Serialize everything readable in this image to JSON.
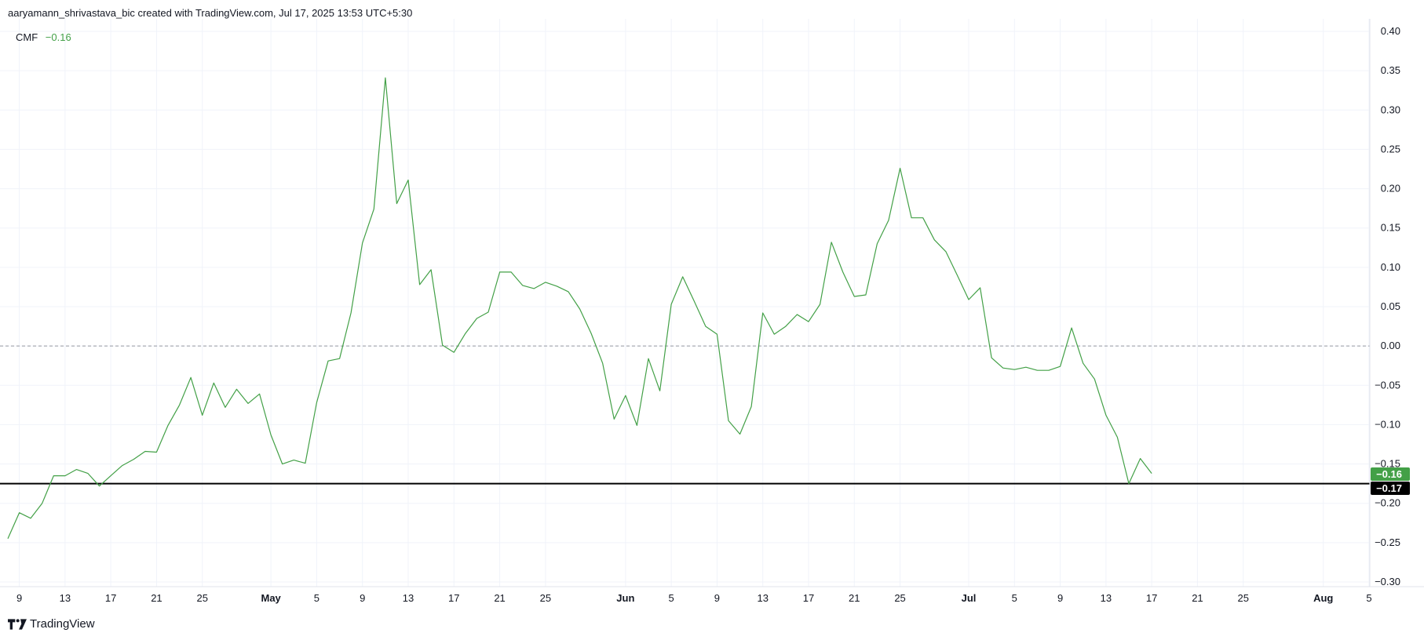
{
  "header": {
    "caption": "aaryamann_shrivastava_bic created with TradingView.com, Jul 17, 2025 13:53 UTC+5:30"
  },
  "legend": {
    "indicator": "CMF",
    "value": "−0.16"
  },
  "footer": {
    "brand": "TradingView"
  },
  "colors": {
    "line": "#43a047",
    "zero_line": "#9598a1",
    "support_line": "#000000",
    "grid": "#f0f3fa",
    "badge_current": "#43a047",
    "badge_support": "#000000"
  },
  "chart_data": {
    "type": "line",
    "ylim": [
      -0.3,
      0.4
    ],
    "y_ticks": [
      {
        "value": 0.4,
        "label": "0.40"
      },
      {
        "value": 0.35,
        "label": "0.35"
      },
      {
        "value": 0.3,
        "label": "0.30"
      },
      {
        "value": 0.25,
        "label": "0.25"
      },
      {
        "value": 0.2,
        "label": "0.20"
      },
      {
        "value": 0.15,
        "label": "0.15"
      },
      {
        "value": 0.1,
        "label": "0.10"
      },
      {
        "value": 0.05,
        "label": "0.05"
      },
      {
        "value": 0.0,
        "label": "0.00"
      },
      {
        "value": -0.05,
        "label": "−0.05"
      },
      {
        "value": -0.1,
        "label": "−0.10"
      },
      {
        "value": -0.15,
        "label": "−0.15"
      },
      {
        "value": -0.2,
        "label": "−0.20"
      },
      {
        "value": -0.25,
        "label": "−0.25"
      },
      {
        "value": -0.3,
        "label": "−0.30"
      }
    ],
    "xlim": [
      "2025-04-08",
      "2025-08-05"
    ],
    "x_ticks": [
      {
        "date": "2025-04-09",
        "label": "9"
      },
      {
        "date": "2025-04-13",
        "label": "13"
      },
      {
        "date": "2025-04-17",
        "label": "17"
      },
      {
        "date": "2025-04-21",
        "label": "21"
      },
      {
        "date": "2025-04-25",
        "label": "25"
      },
      {
        "date": "2025-05-01",
        "label": "May",
        "bold": true
      },
      {
        "date": "2025-05-05",
        "label": "5"
      },
      {
        "date": "2025-05-09",
        "label": "9"
      },
      {
        "date": "2025-05-13",
        "label": "13"
      },
      {
        "date": "2025-05-17",
        "label": "17"
      },
      {
        "date": "2025-05-21",
        "label": "21"
      },
      {
        "date": "2025-05-25",
        "label": "25"
      },
      {
        "date": "2025-06-01",
        "label": "Jun",
        "bold": true
      },
      {
        "date": "2025-06-05",
        "label": "5"
      },
      {
        "date": "2025-06-09",
        "label": "9"
      },
      {
        "date": "2025-06-13",
        "label": "13"
      },
      {
        "date": "2025-06-17",
        "label": "17"
      },
      {
        "date": "2025-06-21",
        "label": "21"
      },
      {
        "date": "2025-06-25",
        "label": "25"
      },
      {
        "date": "2025-07-01",
        "label": "Jul",
        "bold": true
      },
      {
        "date": "2025-07-05",
        "label": "5"
      },
      {
        "date": "2025-07-09",
        "label": "9"
      },
      {
        "date": "2025-07-13",
        "label": "13"
      },
      {
        "date": "2025-07-17",
        "label": "17"
      },
      {
        "date": "2025-07-21",
        "label": "21"
      },
      {
        "date": "2025-07-25",
        "label": "25"
      },
      {
        "date": "2025-08-01",
        "label": "Aug",
        "bold": true
      },
      {
        "date": "2025-08-05",
        "label": "5"
      }
    ],
    "series": [
      {
        "indicator": "CMF",
        "points": [
          [
            "2025-04-08",
            -0.245
          ],
          [
            "2025-04-09",
            -0.212
          ],
          [
            "2025-04-10",
            -0.219
          ],
          [
            "2025-04-11",
            -0.2
          ],
          [
            "2025-04-12",
            -0.165
          ],
          [
            "2025-04-13",
            -0.165
          ],
          [
            "2025-04-14",
            -0.157
          ],
          [
            "2025-04-15",
            -0.162
          ],
          [
            "2025-04-16",
            -0.178
          ],
          [
            "2025-04-17",
            -0.165
          ],
          [
            "2025-04-18",
            -0.152
          ],
          [
            "2025-04-19",
            -0.144
          ],
          [
            "2025-04-20",
            -0.134
          ],
          [
            "2025-04-21",
            -0.135
          ],
          [
            "2025-04-22",
            -0.101
          ],
          [
            "2025-04-23",
            -0.075
          ],
          [
            "2025-04-24",
            -0.04
          ],
          [
            "2025-04-25",
            -0.088
          ],
          [
            "2025-04-26",
            -0.047
          ],
          [
            "2025-04-27",
            -0.078
          ],
          [
            "2025-04-28",
            -0.055
          ],
          [
            "2025-04-29",
            -0.073
          ],
          [
            "2025-04-30",
            -0.061
          ],
          [
            "2025-05-01",
            -0.113
          ],
          [
            "2025-05-02",
            -0.15
          ],
          [
            "2025-05-03",
            -0.145
          ],
          [
            "2025-05-04",
            -0.149
          ],
          [
            "2025-05-05",
            -0.072
          ],
          [
            "2025-05-06",
            -0.019
          ],
          [
            "2025-05-07",
            -0.016
          ],
          [
            "2025-05-08",
            0.042
          ],
          [
            "2025-05-09",
            0.131
          ],
          [
            "2025-05-10",
            0.174
          ],
          [
            "2025-05-11",
            0.341
          ],
          [
            "2025-05-12",
            0.181
          ],
          [
            "2025-05-13",
            0.211
          ],
          [
            "2025-05-14",
            0.078
          ],
          [
            "2025-05-15",
            0.097
          ],
          [
            "2025-05-16",
            0.001
          ],
          [
            "2025-05-17",
            -0.008
          ],
          [
            "2025-05-18",
            0.016
          ],
          [
            "2025-05-19",
            0.035
          ],
          [
            "2025-05-20",
            0.043
          ],
          [
            "2025-05-21",
            0.094
          ],
          [
            "2025-05-22",
            0.094
          ],
          [
            "2025-05-23",
            0.077
          ],
          [
            "2025-05-24",
            0.073
          ],
          [
            "2025-05-25",
            0.081
          ],
          [
            "2025-05-26",
            0.076
          ],
          [
            "2025-05-27",
            0.069
          ],
          [
            "2025-05-28",
            0.047
          ],
          [
            "2025-05-29",
            0.016
          ],
          [
            "2025-05-30",
            -0.022
          ],
          [
            "2025-05-31",
            -0.093
          ],
          [
            "2025-06-01",
            -0.063
          ],
          [
            "2025-06-02",
            -0.101
          ],
          [
            "2025-06-03",
            -0.016
          ],
          [
            "2025-06-04",
            -0.057
          ],
          [
            "2025-06-05",
            0.053
          ],
          [
            "2025-06-06",
            0.088
          ],
          [
            "2025-06-07",
            0.057
          ],
          [
            "2025-06-08",
            0.025
          ],
          [
            "2025-06-09",
            0.015
          ],
          [
            "2025-06-10",
            -0.095
          ],
          [
            "2025-06-11",
            -0.112
          ],
          [
            "2025-06-12",
            -0.077
          ],
          [
            "2025-06-13",
            0.042
          ],
          [
            "2025-06-14",
            0.015
          ],
          [
            "2025-06-15",
            0.025
          ],
          [
            "2025-06-16",
            0.04
          ],
          [
            "2025-06-17",
            0.031
          ],
          [
            "2025-06-18",
            0.053
          ],
          [
            "2025-06-19",
            0.132
          ],
          [
            "2025-06-20",
            0.094
          ],
          [
            "2025-06-21",
            0.063
          ],
          [
            "2025-06-22",
            0.065
          ],
          [
            "2025-06-23",
            0.13
          ],
          [
            "2025-06-24",
            0.16
          ],
          [
            "2025-06-25",
            0.226
          ],
          [
            "2025-06-26",
            0.163
          ],
          [
            "2025-06-27",
            0.163
          ],
          [
            "2025-06-28",
            0.135
          ],
          [
            "2025-06-29",
            0.12
          ],
          [
            "2025-06-30",
            0.09
          ],
          [
            "2025-07-01",
            0.059
          ],
          [
            "2025-07-02",
            0.074
          ],
          [
            "2025-07-03",
            -0.015
          ],
          [
            "2025-07-04",
            -0.028
          ],
          [
            "2025-07-05",
            -0.03
          ],
          [
            "2025-07-06",
            -0.027
          ],
          [
            "2025-07-07",
            -0.031
          ],
          [
            "2025-07-08",
            -0.031
          ],
          [
            "2025-07-09",
            -0.026
          ],
          [
            "2025-07-10",
            0.023
          ],
          [
            "2025-07-11",
            -0.022
          ],
          [
            "2025-07-12",
            -0.042
          ],
          [
            "2025-07-13",
            -0.088
          ],
          [
            "2025-07-14",
            -0.116
          ],
          [
            "2025-07-15",
            -0.175
          ],
          [
            "2025-07-16",
            -0.143
          ],
          [
            "2025-07-17",
            -0.162
          ]
        ]
      }
    ],
    "zero_line": 0.0,
    "horizontal_line": -0.175,
    "price_badges": [
      {
        "value": -0.16,
        "label": "−0.16",
        "color": "#43a047"
      },
      {
        "value": -0.17,
        "label": "−0.17",
        "color": "#000000"
      }
    ],
    "grid": true
  }
}
